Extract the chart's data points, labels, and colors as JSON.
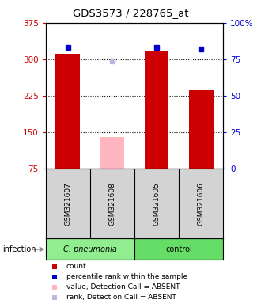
{
  "title": "GDS3573 / 228765_at",
  "samples": [
    "GSM321607",
    "GSM321608",
    "GSM321605",
    "GSM321606"
  ],
  "bar_values": [
    312,
    null,
    316,
    236
  ],
  "bar_absent_values": [
    null,
    140,
    null,
    null
  ],
  "bar_color": "#cc0000",
  "bar_absent_color": "#FFB6C1",
  "dot_values": [
    83,
    null,
    83,
    82
  ],
  "dot_absent_values": [
    null,
    74,
    null,
    null
  ],
  "dot_color": "#0000cc",
  "dot_absent_color": "#b8b8dd",
  "ylim_left": [
    75,
    375
  ],
  "ylim_right": [
    0,
    100
  ],
  "yticks_left": [
    75,
    150,
    225,
    300,
    375
  ],
  "yticks_right": [
    0,
    25,
    50,
    75,
    100
  ],
  "ytick_labels_left": [
    "75",
    "150",
    "225",
    "300",
    "375"
  ],
  "ytick_labels_right": [
    "0",
    "25",
    "50",
    "75",
    "100%"
  ],
  "left_tick_color": "#cc0000",
  "right_tick_color": "#0000cc",
  "grid_yticks": [
    150,
    225,
    300
  ],
  "bar_width": 0.55,
  "legend_items": [
    {
      "color": "#cc0000",
      "label": "count"
    },
    {
      "color": "#0000cc",
      "label": "percentile rank within the sample"
    },
    {
      "color": "#FFB6C1",
      "label": "value, Detection Call = ABSENT"
    },
    {
      "color": "#b8b8dd",
      "label": "rank, Detection Call = ABSENT"
    }
  ],
  "infection_label": "infection",
  "group_labels": [
    "C. pneumonia",
    "control"
  ],
  "group_colors": [
    "#90EE90",
    "#66DD66"
  ],
  "sample_box_color": "#d3d3d3",
  "figsize": [
    3.3,
    3.84
  ],
  "dpi": 100
}
